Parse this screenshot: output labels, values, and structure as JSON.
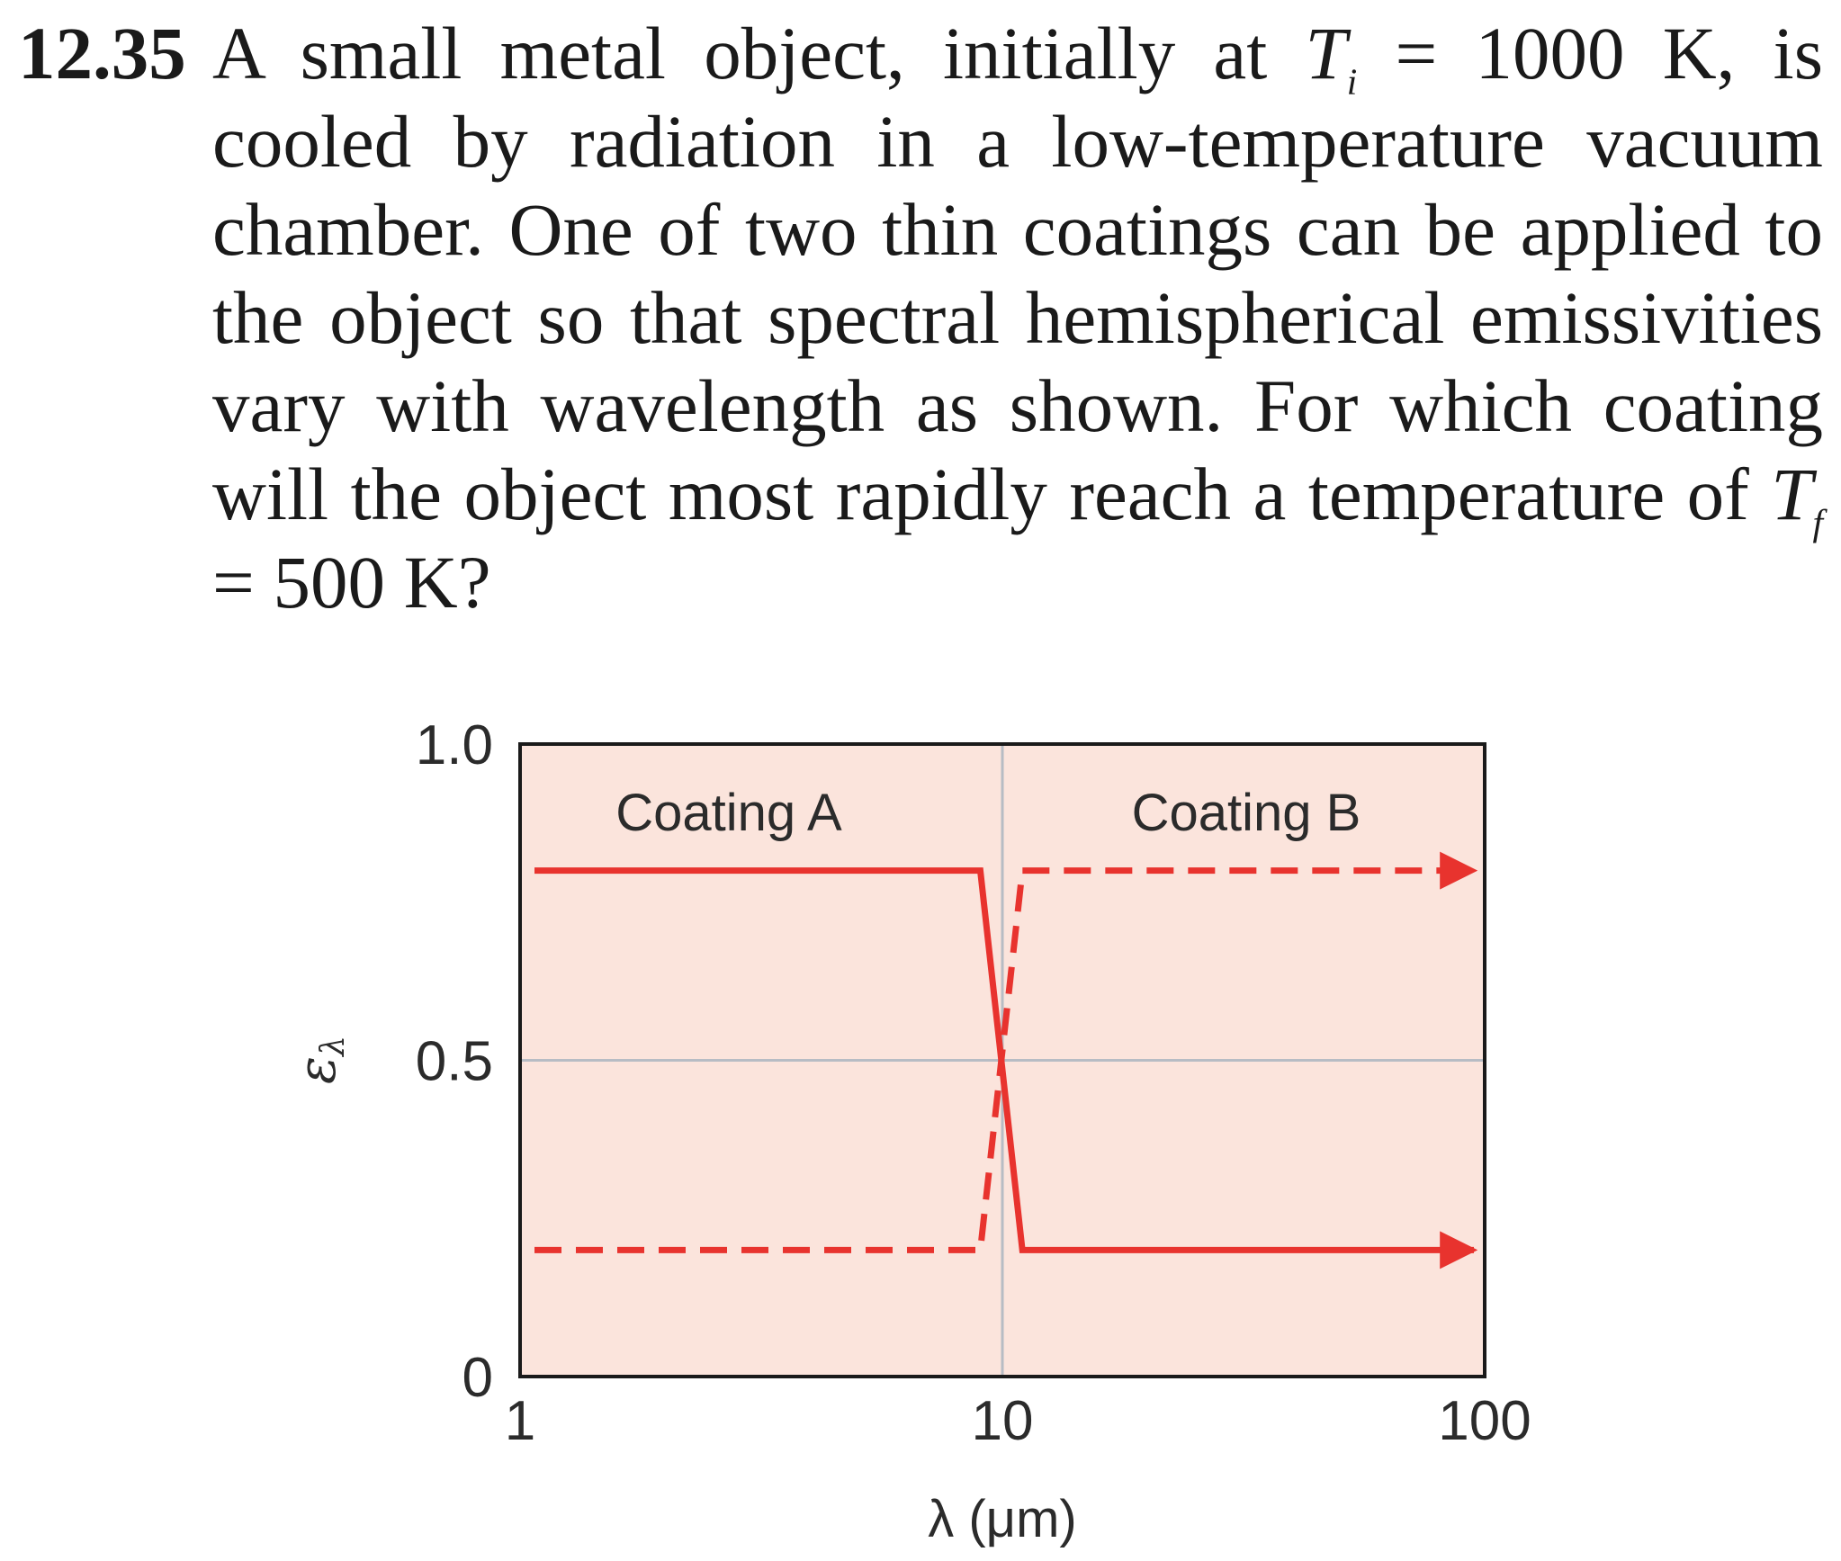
{
  "problem": {
    "number": "12.35",
    "line1_a": "A small metal object, initially at ",
    "ti_T": "T",
    "ti_sub": "i",
    "line1_b": " = 1000 K, is cooled by radiation in a low-temperature vacuum chamber. One of two thin coatings can be applied to the object so that spectral hemispherical emissivities vary with wavelength as shown. For which coating will the object most rapidly reach a temperature of ",
    "tf_T": "T",
    "tf_sub": "f",
    "line1_c": " = 500 K?"
  },
  "chart_data": {
    "type": "line",
    "xscale": "log",
    "xlim": [
      1,
      100
    ],
    "ylim": [
      0,
      1.0
    ],
    "xticks": [
      1,
      10,
      100
    ],
    "xtick_labels": [
      "1",
      "10",
      "100"
    ],
    "yticks": [
      0,
      0.5,
      1.0
    ],
    "ytick_labels": [
      "0",
      "0.5",
      "1.0"
    ],
    "xlabel": "λ (μm)",
    "ylabel": "ε",
    "ylabel_sub": "λ",
    "grid": true,
    "background_color": "#fbe4dc",
    "series": [
      {
        "name": "Coating A",
        "style": "solid",
        "color": "#e8332e",
        "x": [
          1,
          9,
          11,
          100
        ],
        "y": [
          0.8,
          0.8,
          0.2,
          0.2
        ],
        "arrow_end": true
      },
      {
        "name": "Coating B",
        "style": "dashed",
        "color": "#e8332e",
        "x": [
          1,
          9,
          11,
          100
        ],
        "y": [
          0.2,
          0.2,
          0.8,
          0.8
        ],
        "arrow_end": true
      }
    ]
  }
}
